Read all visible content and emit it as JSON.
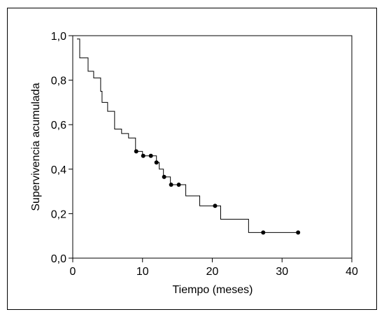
{
  "chart_data": {
    "type": "line",
    "xlabel": "Tiempo (meses)",
    "ylabel": "Supervivencia acumulada",
    "xlim": [
      0,
      40
    ],
    "ylim": [
      0,
      1.0
    ],
    "x_ticks": [
      "0",
      "10",
      "20",
      "30",
      "40"
    ],
    "y_ticks": [
      "0,0",
      "0,2",
      "0,4",
      "0,6",
      "0,8",
      "1,0"
    ],
    "grid": false,
    "legend": "none",
    "series": [
      {
        "step": "post",
        "x": [
          0.6,
          1.0,
          2.2,
          3.0,
          4.0,
          4.2,
          5.0,
          6.0,
          7.0,
          8.0,
          9.0,
          10.0,
          12.0,
          12.4,
          13.0,
          14.0,
          15.2,
          16.2,
          18.2,
          20.0,
          21.2,
          25.2,
          32.4
        ],
        "y": [
          0.985,
          0.9,
          0.84,
          0.81,
          0.75,
          0.7,
          0.66,
          0.58,
          0.56,
          0.54,
          0.48,
          0.46,
          0.43,
          0.4,
          0.365,
          0.33,
          0.33,
          0.28,
          0.235,
          0.235,
          0.175,
          0.115,
          0.115
        ]
      }
    ],
    "censored": {
      "x": [
        9.1,
        10.1,
        11.2,
        12.0,
        13.1,
        14.1,
        15.2,
        20.4,
        27.3,
        32.3
      ],
      "y": [
        0.48,
        0.46,
        0.46,
        0.43,
        0.365,
        0.33,
        0.33,
        0.235,
        0.115,
        0.115
      ]
    },
    "colors": {
      "line": "#000000",
      "marker": "#000000"
    }
  }
}
